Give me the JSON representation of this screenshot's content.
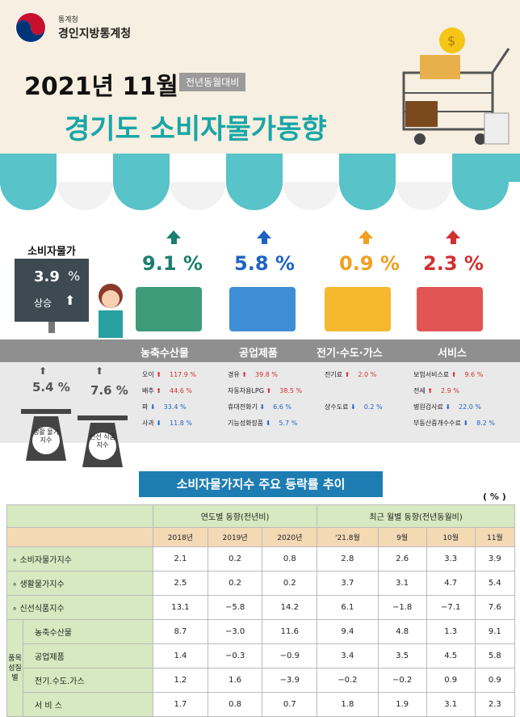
{
  "header": {
    "org_small": "통계청",
    "org": "경인지방통계청",
    "date": "2021년 11월",
    "yoy_tag": "전년동월대비",
    "title": "경기도 소비자물가동향"
  },
  "cpi": {
    "label": "소비자물가",
    "value": "3.9",
    "unit": "%",
    "direction": "상승"
  },
  "categories": [
    {
      "pct": "9.1 %",
      "name": "농축수산물",
      "color": "#1a7f6e"
    },
    {
      "pct": "5.8 %",
      "name": "공업제품",
      "color": "#1e63c4"
    },
    {
      "pct": "0.9 %",
      "name": "전기·수도·가스",
      "color": "#f0a020"
    },
    {
      "pct": "2.3 %",
      "name": "서비스",
      "color": "#d32f2f"
    }
  ],
  "sub_indices": [
    {
      "value": "5.4 %",
      "label": "생활 물가 지수"
    },
    {
      "value": "7.6 %",
      "label": "신선 식품 지수"
    }
  ],
  "items": {
    "agri": [
      {
        "n": "오이",
        "d": "up",
        "v": "117.9 %"
      },
      {
        "n": "배추",
        "d": "up",
        "v": "44.6 %"
      },
      {
        "n": "파",
        "d": "dn",
        "v": "33.4 %"
      },
      {
        "n": "사과",
        "d": "dn",
        "v": "11.8 %"
      }
    ],
    "ind": [
      {
        "n": "경유",
        "d": "up",
        "v": "39.8 %"
      },
      {
        "n": "자동차용LPG",
        "d": "up",
        "v": "38.5 %"
      },
      {
        "n": "휴대전화기",
        "d": "dn",
        "v": "6.6 %"
      },
      {
        "n": "기능성화장품",
        "d": "dn",
        "v": "5.7 %"
      }
    ],
    "util": [
      {
        "n": "전기료",
        "d": "up",
        "v": "2.0 %"
      },
      {
        "n": "상수도료",
        "d": "dn",
        "v": "0.2 %"
      }
    ],
    "serv": [
      {
        "n": "보험서비스료",
        "d": "up",
        "v": "9.6 %"
      },
      {
        "n": "전세",
        "d": "up",
        "v": "2.9 %"
      },
      {
        "n": "병원검사료",
        "d": "dn",
        "v": "22.0 %"
      },
      {
        "n": "부동산중개수수료",
        "d": "dn",
        "v": "8.2 %"
      }
    ]
  },
  "table": {
    "title": "소비자물가지수 주요 등락률 추이",
    "unit": "( % )",
    "group1": "연도별 동향(전년비)",
    "group2": "최근 월별 동향(전년동월비)",
    "years": [
      "2018년",
      "2019년",
      "2020년",
      "'21.8월",
      "9월",
      "10월",
      "11월"
    ],
    "side_label": "품목성질별",
    "rows": [
      {
        "name": "∘ 소비자물가지수",
        "vals": [
          "2.1",
          "0.2",
          "0.8",
          "2.8",
          "2.6",
          "3.3",
          "3.9"
        ]
      },
      {
        "name": "∘ 생활물가지수",
        "vals": [
          "2.5",
          "0.2",
          "0.2",
          "3.7",
          "3.1",
          "4.7",
          "5.4"
        ]
      },
      {
        "name": "∘ 신선식품지수",
        "vals": [
          "13.1",
          "−5.8",
          "14.2",
          "6.1",
          "−1.8",
          "−7.1",
          "7.6"
        ]
      },
      {
        "name": "농축수산물",
        "vals": [
          "8.7",
          "−3.0",
          "11.6",
          "9.4",
          "4.8",
          "1.3",
          "9.1"
        ]
      },
      {
        "name": "공업제품",
        "vals": [
          "1.4",
          "−0.3",
          "−0.9",
          "3.4",
          "3.5",
          "4.5",
          "5.8"
        ]
      },
      {
        "name": "전기.수도.가스",
        "vals": [
          "1.2",
          "1.6",
          "−3.9",
          "−0.2",
          "−0.2",
          "0.9",
          "0.9"
        ]
      },
      {
        "name": "서 비 스",
        "vals": [
          "1.7",
          "0.8",
          "0.7",
          "1.8",
          "1.9",
          "3.1",
          "2.3"
        ]
      }
    ]
  }
}
